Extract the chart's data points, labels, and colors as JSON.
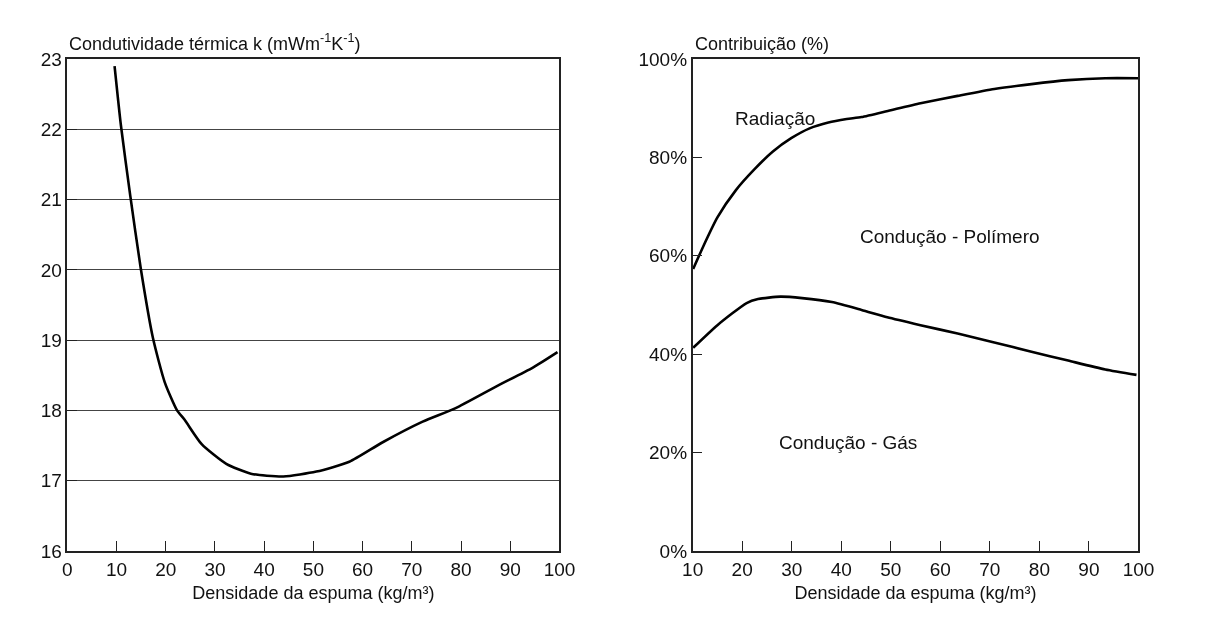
{
  "chart_data": [
    {
      "type": "line",
      "ylabel": "Condutividade térmica k (mWm$^{-1}$K$^{-1}$)",
      "xlabel": "Densidade da espuma (kg/m³)",
      "xlim": [
        0,
        100
      ],
      "xticks": [
        0,
        10,
        20,
        30,
        40,
        50,
        60,
        70,
        80,
        90,
        100
      ],
      "ylim": [
        16,
        23
      ],
      "yticks": [
        16,
        17,
        18,
        19,
        20,
        21,
        22,
        23
      ],
      "grid": "y",
      "series": [
        {
          "color": "#000000",
          "x": [
            9.6,
            10.9,
            12.8,
            14.9,
            17.4,
            19.8,
            22.3,
            23.8,
            27.3,
            32.3,
            37.3,
            43.9,
            50.6,
            57.3,
            63.9,
            72.2,
            78.8,
            87.1,
            94.6,
            99.6
          ],
          "values": [
            22.9,
            22.05,
            21.05,
            20.03,
            19.03,
            18.4,
            18.0,
            17.87,
            17.52,
            17.24,
            17.1,
            17.06,
            17.13,
            17.27,
            17.54,
            17.84,
            18.03,
            18.34,
            18.61,
            18.83
          ]
        }
      ]
    },
    {
      "type": "line",
      "ylabel": "Contribuição (%)",
      "xlabel": "Densidade da espuma (kg/m³)",
      "xlim": [
        10,
        100
      ],
      "xticks": [
        10,
        20,
        30,
        40,
        50,
        60,
        70,
        80,
        90,
        100
      ],
      "ylim": [
        0,
        100
      ],
      "yticks": [
        {
          "value": 0,
          "label": "0%"
        },
        {
          "value": 20,
          "label": "20%"
        },
        {
          "value": 40,
          "label": "40%"
        },
        {
          "value": 60,
          "label": "60%"
        },
        {
          "value": 80,
          "label": "80%"
        },
        {
          "value": 100,
          "label": "100%"
        }
      ],
      "grid": false,
      "annotations": [
        "Radiação",
        "Condução - Polímero",
        "Condução - Gás"
      ],
      "series": [
        {
          "color": "#000000",
          "x": [
            10.1,
            12,
            15,
            18.7,
            22.5,
            26.2,
            29.9,
            33.6,
            37.4,
            41.1,
            44.1,
            50,
            56,
            63.5,
            70.9,
            78.4,
            85.8,
            93.3,
            100
          ],
          "values": [
            57.3,
            61.6,
            67.8,
            73.3,
            77.6,
            81.2,
            83.9,
            85.9,
            87.1,
            87.8,
            88.2,
            89.6,
            91,
            92.5,
            93.9,
            94.9,
            95.7,
            96.1,
            96.1
          ]
        },
        {
          "color": "#000000",
          "x": [
            10.1,
            15,
            20.9,
            23.2,
            27.7,
            32.1,
            38.1,
            44.1,
            49.3,
            56,
            63.5,
            70.9,
            78.4,
            85.8,
            93.3,
            99.6
          ],
          "values": [
            41.3,
            45.9,
            50.4,
            51.2,
            51.7,
            51.4,
            50.6,
            49,
            47.5,
            45.9,
            44.2,
            42.4,
            40.5,
            38.7,
            36.9,
            35.8
          ]
        }
      ]
    }
  ]
}
